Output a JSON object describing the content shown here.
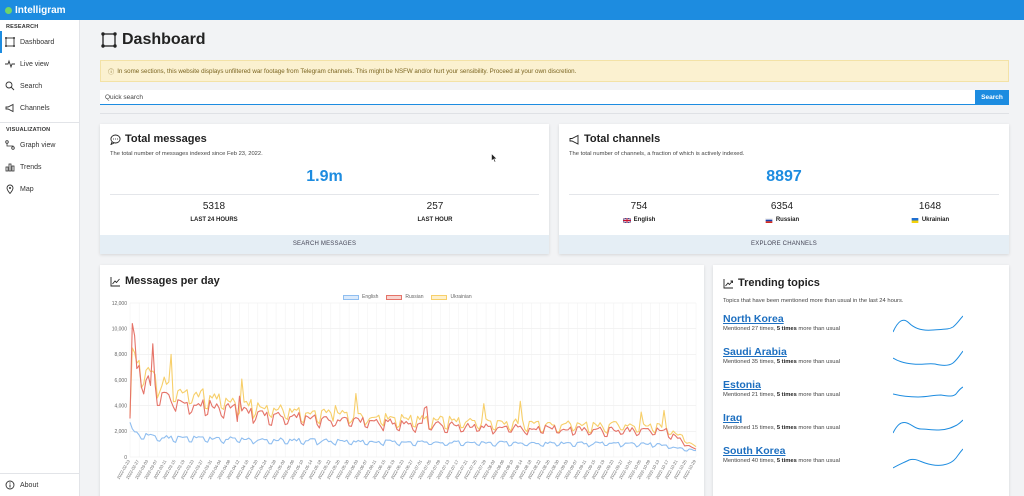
{
  "app": {
    "name": "Intelligram",
    "accent": "#1d8ce0"
  },
  "sidebar": {
    "section_research": "RESEARCH",
    "section_visualization": "VISUALIZATION",
    "research_items": [
      {
        "label": "Dashboard",
        "icon": "dashboard-icon",
        "active": true
      },
      {
        "label": "Live view",
        "icon": "pulse-icon"
      },
      {
        "label": "Search",
        "icon": "search-icon"
      },
      {
        "label": "Channels",
        "icon": "megaphone-icon"
      }
    ],
    "visualization_items": [
      {
        "label": "Graph view",
        "icon": "graph-icon"
      },
      {
        "label": "Trends",
        "icon": "bar-chart-icon"
      },
      {
        "label": "Map",
        "icon": "map-pin-icon"
      }
    ],
    "about": "About"
  },
  "page": {
    "title": "Dashboard"
  },
  "alert": {
    "text": "In some sections, this website displays unfiltered war footage from Telegram channels. This might be NSFW and/or hurt your sensibility. Proceed at your own discretion."
  },
  "search": {
    "placeholder": "Quick search",
    "button": "Search"
  },
  "total_messages": {
    "title": "Total messages",
    "subtitle": "The total number of messages indexed since Feb 23, 2022.",
    "value": "1.9m",
    "stats": [
      {
        "value": "5318",
        "label": "LAST 24 HOURS"
      },
      {
        "value": "257",
        "label": "LAST HOUR"
      }
    ],
    "footer": "SEARCH MESSAGES"
  },
  "total_channels": {
    "title": "Total channels",
    "subtitle": "The total number of channels, a fraction of which is actively indexed.",
    "value": "8897",
    "stats": [
      {
        "value": "754",
        "label": "English"
      },
      {
        "value": "6354",
        "label": "Russian"
      },
      {
        "value": "1648",
        "label": "Ukrainian"
      }
    ],
    "footer": "EXPLORE CHANNELS"
  },
  "messages_per_day": {
    "title": "Messages per day"
  },
  "chart_data": {
    "type": "line",
    "ylim": [
      0,
      12000
    ],
    "y_ticks": [
      "0",
      "2,000",
      "4,000",
      "6,000",
      "8,000",
      "10,000",
      "12,000"
    ],
    "x_ticks": [
      "2022-02-23",
      "2022-02-27",
      "2022-03-03",
      "2022-03-07",
      "2022-03-11",
      "2022-03-15",
      "2022-03-19",
      "2022-03-23",
      "2022-03-27",
      "2022-03-31",
      "2022-04-04",
      "2022-04-08",
      "2022-04-12",
      "2022-04-16",
      "2022-04-20",
      "2022-04-24",
      "2022-04-28",
      "2022-05-02",
      "2022-05-06",
      "2022-05-10",
      "2022-05-14",
      "2022-05-18",
      "2022-05-22",
      "2022-05-26",
      "2022-05-30",
      "2022-06-03",
      "2022-06-07",
      "2022-06-11",
      "2022-06-15",
      "2022-06-19",
      "2022-06-23",
      "2022-06-27",
      "2022-07-01",
      "2022-07-05",
      "2022-07-09",
      "2022-07-13",
      "2022-07-17",
      "2022-07-21",
      "2022-07-25",
      "2022-07-29",
      "2022-08-02",
      "2022-08-06",
      "2022-08-10",
      "2022-08-14",
      "2022-08-18",
      "2022-08-22",
      "2022-08-26",
      "2022-08-30",
      "2022-09-03",
      "2022-09-07",
      "2022-09-11",
      "2022-09-15",
      "2022-09-19",
      "2022-09-23",
      "2022-09-27",
      "2022-10-01",
      "2022-10-05",
      "2022-10-09",
      "2022-10-13",
      "2022-10-17",
      "2022-10-21",
      "2022-10-25",
      "2022-10-29"
    ],
    "legend": [
      "English",
      "Russian",
      "Ukrainian"
    ],
    "colors": {
      "English": "#8fbef0",
      "Russian": "#e57368",
      "Ukrainian": "#f7cf6a"
    },
    "series": [
      {
        "name": "English",
        "anchors": [
          [
            0,
            2700
          ],
          [
            1,
            2200
          ],
          [
            4,
            1800
          ],
          [
            10,
            1600
          ],
          [
            30,
            1500
          ],
          [
            60,
            1400
          ],
          [
            100,
            1250
          ],
          [
            150,
            1150
          ],
          [
            200,
            1100
          ],
          [
            230,
            1050
          ],
          [
            248,
            500
          ]
        ]
      },
      {
        "name": "Russian",
        "anchors": [
          [
            0,
            3000
          ],
          [
            1,
            10400
          ],
          [
            3,
            7200
          ],
          [
            8,
            5900
          ],
          [
            15,
            4800
          ],
          [
            22,
            4500
          ],
          [
            40,
            4000
          ],
          [
            60,
            3400
          ],
          [
            90,
            3000
          ],
          [
            120,
            2700
          ],
          [
            160,
            2400
          ],
          [
            200,
            2200
          ],
          [
            235,
            2100
          ],
          [
            248,
            600
          ]
        ]
      },
      {
        "name": "Ukrainian",
        "anchors": [
          [
            0,
            3200
          ],
          [
            1,
            8500
          ],
          [
            3,
            7800
          ],
          [
            8,
            6800
          ],
          [
            15,
            5800
          ],
          [
            22,
            5400
          ],
          [
            40,
            4600
          ],
          [
            60,
            4000
          ],
          [
            90,
            3400
          ],
          [
            120,
            3100
          ],
          [
            160,
            2800
          ],
          [
            200,
            2600
          ],
          [
            235,
            2500
          ],
          [
            248,
            800
          ]
        ]
      }
    ]
  },
  "trending": {
    "title": "Trending topics",
    "subtitle": "Topics that have been mentioned more than usual in the last 24 hours.",
    "topics": [
      {
        "name": "North Korea",
        "meta_pre": "Mentioned 27 times, ",
        "meta_bold": "5 times",
        "meta_post": " more than usual"
      },
      {
        "name": "Saudi Arabia",
        "meta_pre": "Mentioned 35 times, ",
        "meta_bold": "5 times",
        "meta_post": " more than usual"
      },
      {
        "name": "Estonia",
        "meta_pre": "Mentioned 21 times, ",
        "meta_bold": "5 times",
        "meta_post": " more than usual"
      },
      {
        "name": "Iraq",
        "meta_pre": "Mentioned 15 times, ",
        "meta_bold": "5 times",
        "meta_post": " more than usual"
      },
      {
        "name": "South Korea",
        "meta_pre": "Mentioned 40 times, ",
        "meta_bold": "5 times",
        "meta_post": " more than usual"
      }
    ]
  }
}
